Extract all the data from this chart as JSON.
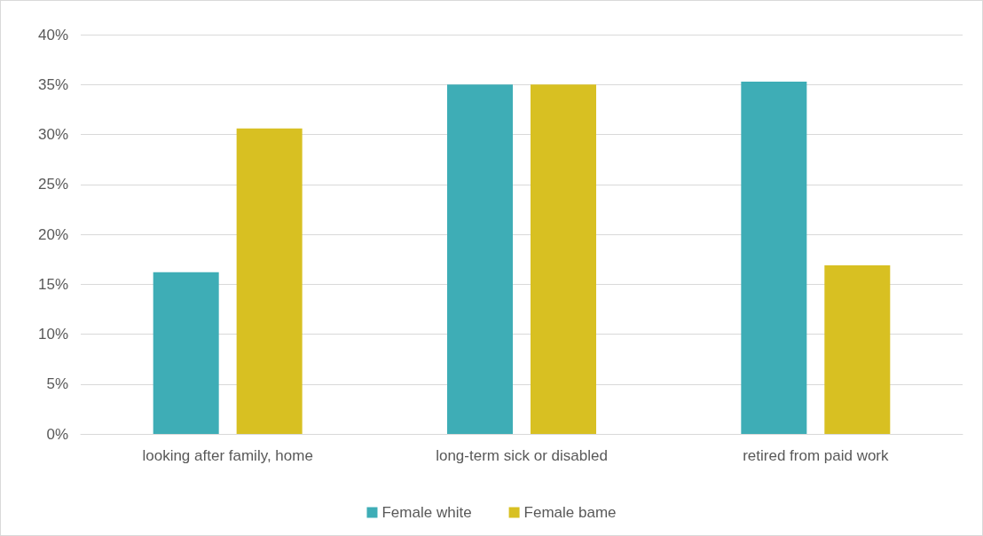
{
  "chart_data": {
    "type": "bar",
    "categories": [
      "looking after family, home",
      "long-term sick or disabled",
      "retired from paid work"
    ],
    "series": [
      {
        "name": "Female white",
        "color": "#3eadb6",
        "values": [
          16.2,
          35.0,
          35.3
        ]
      },
      {
        "name": "Female bame",
        "color": "#d8c022",
        "values": [
          30.6,
          35.0,
          16.9
        ]
      }
    ],
    "ylim": [
      0,
      40
    ],
    "yticks": [
      {
        "value": 0,
        "label": "0%"
      },
      {
        "value": 5,
        "label": "5%"
      },
      {
        "value": 10,
        "label": "10%"
      },
      {
        "value": 15,
        "label": "15%"
      },
      {
        "value": 20,
        "label": "20%"
      },
      {
        "value": 25,
        "label": "25%"
      },
      {
        "value": 30,
        "label": "30%"
      },
      {
        "value": 35,
        "label": "35%"
      },
      {
        "value": 40,
        "label": "40%"
      }
    ],
    "grid": "y",
    "legend": "bottom"
  }
}
